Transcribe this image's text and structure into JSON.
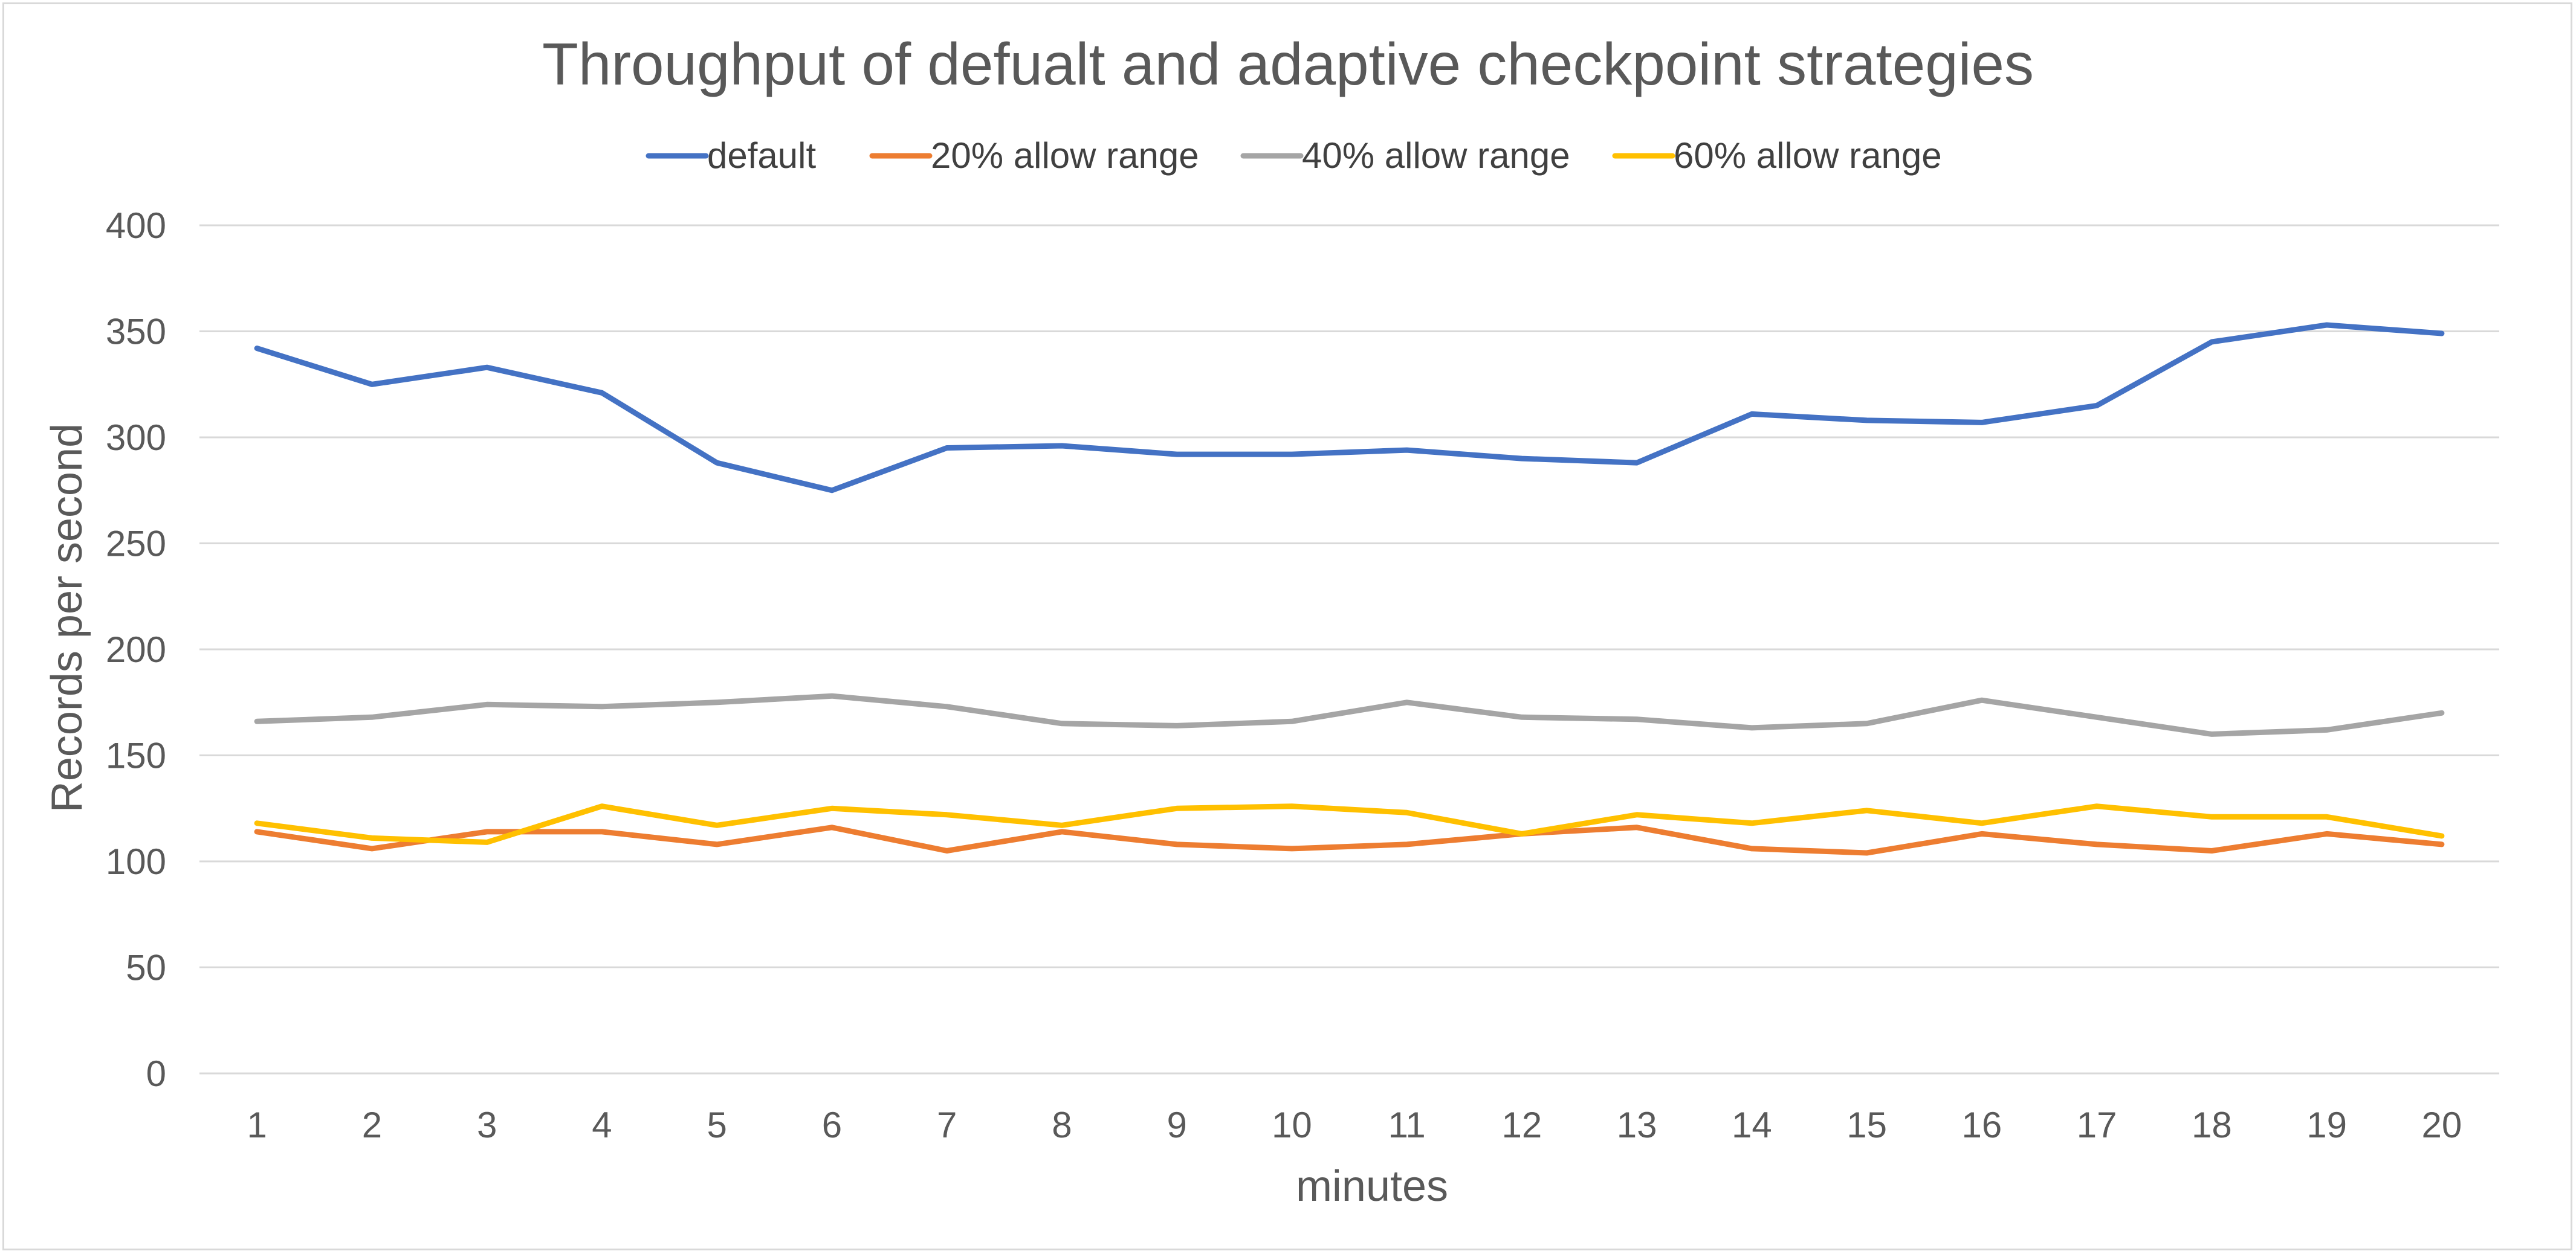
{
  "chart_data": {
    "type": "line",
    "title": "Throughput  of defualt and adaptive checkpoint strategies",
    "xlabel": "minutes",
    "ylabel": "Records per second",
    "ylim": [
      0,
      400
    ],
    "y_ticks": [
      "0",
      "50",
      "100",
      "150",
      "200",
      "250",
      "300",
      "350",
      "400"
    ],
    "y_tick_values": [
      0,
      50,
      100,
      150,
      200,
      250,
      300,
      350,
      400
    ],
    "categories": [
      "1",
      "2",
      "3",
      "4",
      "5",
      "6",
      "7",
      "8",
      "9",
      "10",
      "11",
      "12",
      "13",
      "14",
      "15",
      "16",
      "17",
      "18",
      "19",
      "20"
    ],
    "grid": true,
    "legend_position": "top",
    "series": [
      {
        "name": "default",
        "color": "#4472C4",
        "values": [
          342,
          325,
          333,
          321,
          288,
          275,
          295,
          296,
          292,
          292,
          294,
          290,
          288,
          311,
          308,
          307,
          315,
          345,
          353,
          349
        ]
      },
      {
        "name": "20% allow range",
        "color": "#ED7D31",
        "values": [
          114,
          106,
          114,
          114,
          108,
          116,
          105,
          114,
          108,
          106,
          108,
          113,
          116,
          106,
          104,
          113,
          108,
          105,
          113,
          108
        ]
      },
      {
        "name": "40% allow range",
        "color": "#A5A5A5",
        "values": [
          166,
          168,
          174,
          173,
          175,
          178,
          173,
          165,
          164,
          166,
          175,
          168,
          167,
          163,
          165,
          176,
          168,
          160,
          162,
          170
        ]
      },
      {
        "name": "60% allow range",
        "color": "#FFC000",
        "values": [
          118,
          111,
          109,
          126,
          117,
          125,
          122,
          117,
          125,
          126,
          123,
          113,
          122,
          118,
          124,
          118,
          126,
          121,
          121,
          112
        ]
      }
    ]
  }
}
